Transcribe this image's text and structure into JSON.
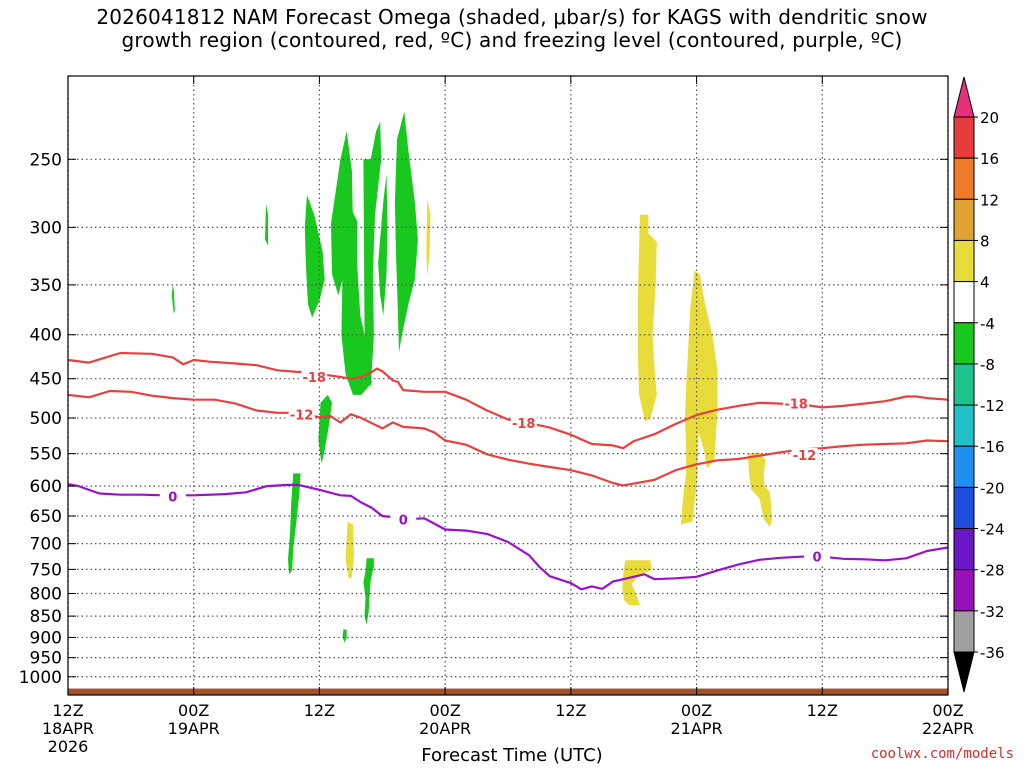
{
  "title": {
    "line1": "2026041812 NAM Forecast Omega (shaded, μbar/s) for KAGS with dendritic snow",
    "line2": "growth region (contoured, red, ºC) and freezing level (contoured, purple, ºC)"
  },
  "credit": "coolwx.com/models",
  "chart_data": {
    "type": "area",
    "title": "2026041812 NAM Forecast Omega (shaded, μbar/s) for KAGS with dendritic snow growth region (contoured, red, ºC) and freezing level (contoured, purple, ºC)",
    "xlabel": "Forecast Time (UTC)",
    "ylabel": "",
    "x_range_hours": [
      0,
      84
    ],
    "x_ticks": [
      {
        "hour": 0,
        "lines": [
          "12Z",
          "18APR",
          "2026"
        ]
      },
      {
        "hour": 12,
        "lines": [
          "00Z",
          "19APR"
        ]
      },
      {
        "hour": 24,
        "lines": [
          "12Z"
        ]
      },
      {
        "hour": 36,
        "lines": [
          "00Z",
          "20APR"
        ]
      },
      {
        "hour": 48,
        "lines": [
          "12Z"
        ]
      },
      {
        "hour": 60,
        "lines": [
          "00Z",
          "21APR"
        ]
      },
      {
        "hour": 72,
        "lines": [
          "12Z"
        ]
      },
      {
        "hour": 84,
        "lines": [
          "00Z",
          "22APR"
        ]
      }
    ],
    "y_ticks_hpa": [
      250,
      300,
      350,
      400,
      450,
      500,
      550,
      600,
      650,
      700,
      750,
      800,
      850,
      900,
      950,
      1000
    ],
    "y_range_hpa": [
      200,
      1050
    ],
    "grid": true,
    "colorbar": {
      "labels": [
        "20",
        "16",
        "12",
        "8",
        "4",
        "-4",
        "-8",
        "-12",
        "-16",
        "-20",
        "-24",
        "-28",
        "-32",
        "-36"
      ],
      "colors": [
        "#e8307a",
        "#e83b3b",
        "#ee7a28",
        "#e0a232",
        "#e8dc3b",
        "#ffffff",
        "#19c81e",
        "#1dc28c",
        "#22c1c8",
        "#1e90f0",
        "#1e4de0",
        "#6a17c8",
        "#9a10bb",
        "#a0a0a0",
        "#000000"
      ]
    },
    "series": [
      {
        "name": "-18",
        "color": "#e84040",
        "label_points": [
          [
            23.5,
            448
          ],
          [
            43.5,
            507
          ],
          [
            69.5,
            481
          ]
        ],
        "points": [
          [
            0,
            428
          ],
          [
            2,
            431
          ],
          [
            5,
            420
          ],
          [
            8,
            421
          ],
          [
            10,
            425
          ],
          [
            11,
            433
          ],
          [
            12,
            428
          ],
          [
            13.5,
            430
          ],
          [
            16,
            432
          ],
          [
            18,
            434
          ],
          [
            20,
            440
          ],
          [
            22,
            442
          ],
          [
            23,
            441
          ],
          [
            24,
            445
          ],
          [
            25,
            446
          ],
          [
            26,
            448
          ],
          [
            27,
            450
          ],
          [
            28,
            448
          ],
          [
            29,
            442
          ],
          [
            29.5,
            438
          ],
          [
            30,
            441
          ],
          [
            31,
            452
          ],
          [
            31.5,
            454
          ],
          [
            32,
            464
          ],
          [
            34,
            466
          ],
          [
            36,
            466
          ],
          [
            38,
            476
          ],
          [
            40,
            490
          ],
          [
            42,
            502
          ],
          [
            44,
            507
          ],
          [
            46,
            513
          ],
          [
            48,
            523
          ],
          [
            50,
            536
          ],
          [
            52,
            538
          ],
          [
            53,
            542
          ],
          [
            54,
            532
          ],
          [
            56,
            522
          ],
          [
            58,
            508
          ],
          [
            60,
            496
          ],
          [
            62,
            489
          ],
          [
            64,
            484
          ],
          [
            66,
            480
          ],
          [
            68,
            481
          ],
          [
            70,
            482
          ],
          [
            72,
            486
          ],
          [
            74,
            484
          ],
          [
            76,
            481
          ],
          [
            78,
            478
          ],
          [
            80,
            472
          ],
          [
            81,
            472
          ],
          [
            82,
            474
          ],
          [
            84,
            476
          ]
        ]
      },
      {
        "name": "-12",
        "color": "#e84040",
        "label_points": [
          [
            22.3,
            495
          ],
          [
            70.3,
            552
          ]
        ],
        "points": [
          [
            0,
            470
          ],
          [
            2,
            473
          ],
          [
            4,
            465
          ],
          [
            6,
            466
          ],
          [
            8,
            471
          ],
          [
            10,
            474
          ],
          [
            12,
            476
          ],
          [
            14,
            476
          ],
          [
            16,
            481
          ],
          [
            18,
            490
          ],
          [
            20,
            493
          ],
          [
            22,
            493
          ],
          [
            24,
            499
          ],
          [
            25,
            497
          ],
          [
            26,
            506
          ],
          [
            27,
            495
          ],
          [
            28,
            500
          ],
          [
            29,
            507
          ],
          [
            30,
            514
          ],
          [
            31,
            506
          ],
          [
            32,
            512
          ],
          [
            34,
            514
          ],
          [
            35,
            520
          ],
          [
            36,
            531
          ],
          [
            38,
            537
          ],
          [
            40,
            551
          ],
          [
            42,
            559
          ],
          [
            44,
            565
          ],
          [
            46,
            570
          ],
          [
            48,
            575
          ],
          [
            50,
            583
          ],
          [
            52,
            595
          ],
          [
            53,
            599
          ],
          [
            54,
            596
          ],
          [
            56,
            590
          ],
          [
            58,
            575
          ],
          [
            60,
            566
          ],
          [
            62,
            560
          ],
          [
            64,
            558
          ],
          [
            66,
            553
          ],
          [
            68,
            548
          ],
          [
            70,
            544
          ],
          [
            72,
            542
          ],
          [
            74,
            539
          ],
          [
            76,
            537
          ],
          [
            78,
            536
          ],
          [
            80,
            535
          ],
          [
            82,
            531
          ],
          [
            84,
            532
          ]
        ]
      },
      {
        "name": "0",
        "color": "#9a10cc",
        "label_points": [
          [
            10,
            617
          ],
          [
            32,
            656
          ],
          [
            71.5,
            725
          ]
        ],
        "points": [
          [
            0,
            597
          ],
          [
            1,
            600
          ],
          [
            3,
            612
          ],
          [
            5,
            614
          ],
          [
            7,
            614
          ],
          [
            9,
            615
          ],
          [
            12,
            615
          ],
          [
            15,
            613
          ],
          [
            17,
            610
          ],
          [
            19,
            600
          ],
          [
            21,
            598
          ],
          [
            22,
            598
          ],
          [
            24,
            606
          ],
          [
            26,
            615
          ],
          [
            27,
            616
          ],
          [
            28,
            627
          ],
          [
            29,
            636
          ],
          [
            30,
            650
          ],
          [
            31,
            652
          ],
          [
            32,
            656
          ],
          [
            34,
            654
          ],
          [
            35,
            664
          ],
          [
            36,
            674
          ],
          [
            38,
            676
          ],
          [
            40,
            682
          ],
          [
            42,
            697
          ],
          [
            44,
            722
          ],
          [
            45,
            745
          ],
          [
            46,
            764
          ],
          [
            48,
            778
          ],
          [
            49,
            791
          ],
          [
            50,
            785
          ],
          [
            51,
            790
          ],
          [
            52,
            775
          ],
          [
            54,
            765
          ],
          [
            55,
            760
          ],
          [
            56,
            770
          ],
          [
            58,
            768
          ],
          [
            60,
            765
          ],
          [
            62,
            752
          ],
          [
            64,
            740
          ],
          [
            66,
            731
          ],
          [
            68,
            727
          ],
          [
            70,
            725
          ],
          [
            72,
            725
          ],
          [
            74,
            729
          ],
          [
            76,
            730
          ],
          [
            78,
            732
          ],
          [
            80,
            728
          ],
          [
            82,
            714
          ],
          [
            84,
            707
          ]
        ]
      }
    ],
    "shaded_regions": [
      {
        "omega_bin": "-4 to -8",
        "color": "#19c81e",
        "count": 12
      },
      {
        "omega_bin": "4 to 8",
        "color": "#e8dc3b",
        "count": 8
      }
    ],
    "terrain_color": "#a0522d"
  }
}
